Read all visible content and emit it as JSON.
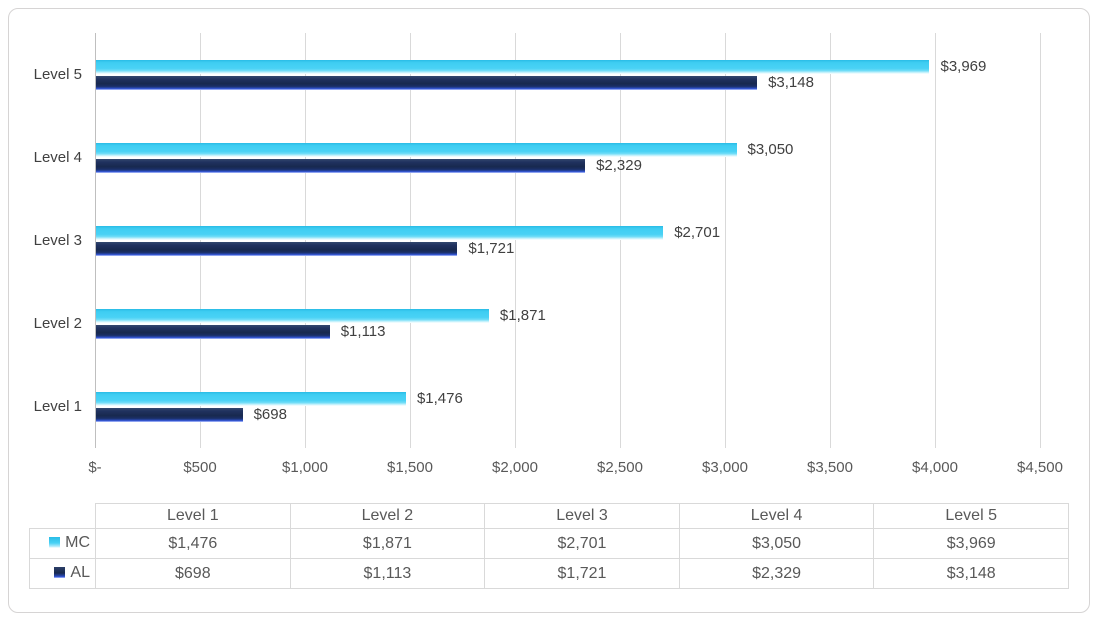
{
  "chart_data": {
    "type": "bar",
    "orientation": "horizontal",
    "title": "",
    "xlabel": "",
    "ylabel": "",
    "categories": [
      "Level 1",
      "Level 2",
      "Level 3",
      "Level 4",
      "Level 5"
    ],
    "category_order_top_to_bottom": [
      4,
      3,
      2,
      1,
      0
    ],
    "series": [
      {
        "name": "MC",
        "values": [
          1476,
          1871,
          2701,
          3050,
          3969
        ],
        "labels": [
          "$1,476",
          "$1,871",
          "$2,701",
          "$3,050",
          "$3,969"
        ],
        "color": "#3ecdf2"
      },
      {
        "name": "AL",
        "values": [
          698,
          1113,
          1721,
          2329,
          3148
        ],
        "labels": [
          "$698",
          "$1,113",
          "$1,721",
          "$2,329",
          "$3,148"
        ],
        "color": "#1f3864"
      }
    ],
    "x_ticks": [
      0,
      500,
      1000,
      1500,
      2000,
      2500,
      3000,
      3500,
      4000,
      4500
    ],
    "x_tick_labels": [
      "$-",
      "$500",
      "$1,000",
      "$1,500",
      "$2,000",
      "$2,500",
      "$3,000",
      "$3,500",
      "$4,000",
      "$4,500"
    ],
    "xlim": [
      0,
      4630
    ],
    "grid": true,
    "legend_position": "data-table-keys",
    "data_table_shown": true
  },
  "table": {
    "column_headers": [
      "Level 1",
      "Level 2",
      "Level 3",
      "Level 4",
      "Level 5"
    ],
    "rows": [
      {
        "key": "MC",
        "cells": [
          "$1,476",
          "$1,871",
          "$2,701",
          "$3,050",
          "$3,969"
        ]
      },
      {
        "key": "AL",
        "cells": [
          "$698",
          "$1,113",
          "$1,721",
          "$2,329",
          "$3,148"
        ]
      }
    ]
  },
  "colors": {
    "frame_border": "#d6d4d4",
    "gridline": "#d9d9d9",
    "axis_line": "#bfbfbf",
    "category_text": "#404040",
    "data_label_text": "#404040",
    "axis_tick_text": "#595959",
    "table_text": "#595959",
    "table_border": "#d9d9d9",
    "series_mc": "#3ecdf2",
    "series_al": "#1f3864"
  }
}
